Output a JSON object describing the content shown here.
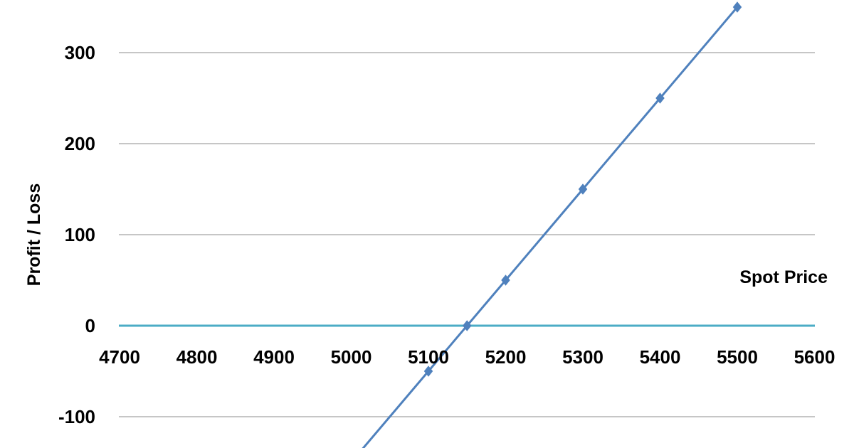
{
  "chart_data": {
    "type": "line",
    "title": "",
    "xlabel": "Spot Price",
    "ylabel": "Profit / Loss",
    "xlim": [
      4700,
      5600
    ],
    "ylim": [
      -135,
      350
    ],
    "x_ticks": [
      "4700",
      "4800",
      "4900",
      "5000",
      "5100",
      "5200",
      "5300",
      "5400",
      "5500",
      "5600"
    ],
    "y_ticks": [
      "-100",
      "0",
      "100",
      "200",
      "300"
    ],
    "grid": true,
    "legend": "none",
    "series": [
      {
        "color": "#4F81BD",
        "x": [
          5000,
          5100,
          5150,
          5200,
          5300,
          5400,
          5500
        ],
        "y": [
          -150,
          -50,
          0,
          50,
          150,
          250,
          350
        ]
      }
    ],
    "zero_line_color": "#4BACC6"
  }
}
